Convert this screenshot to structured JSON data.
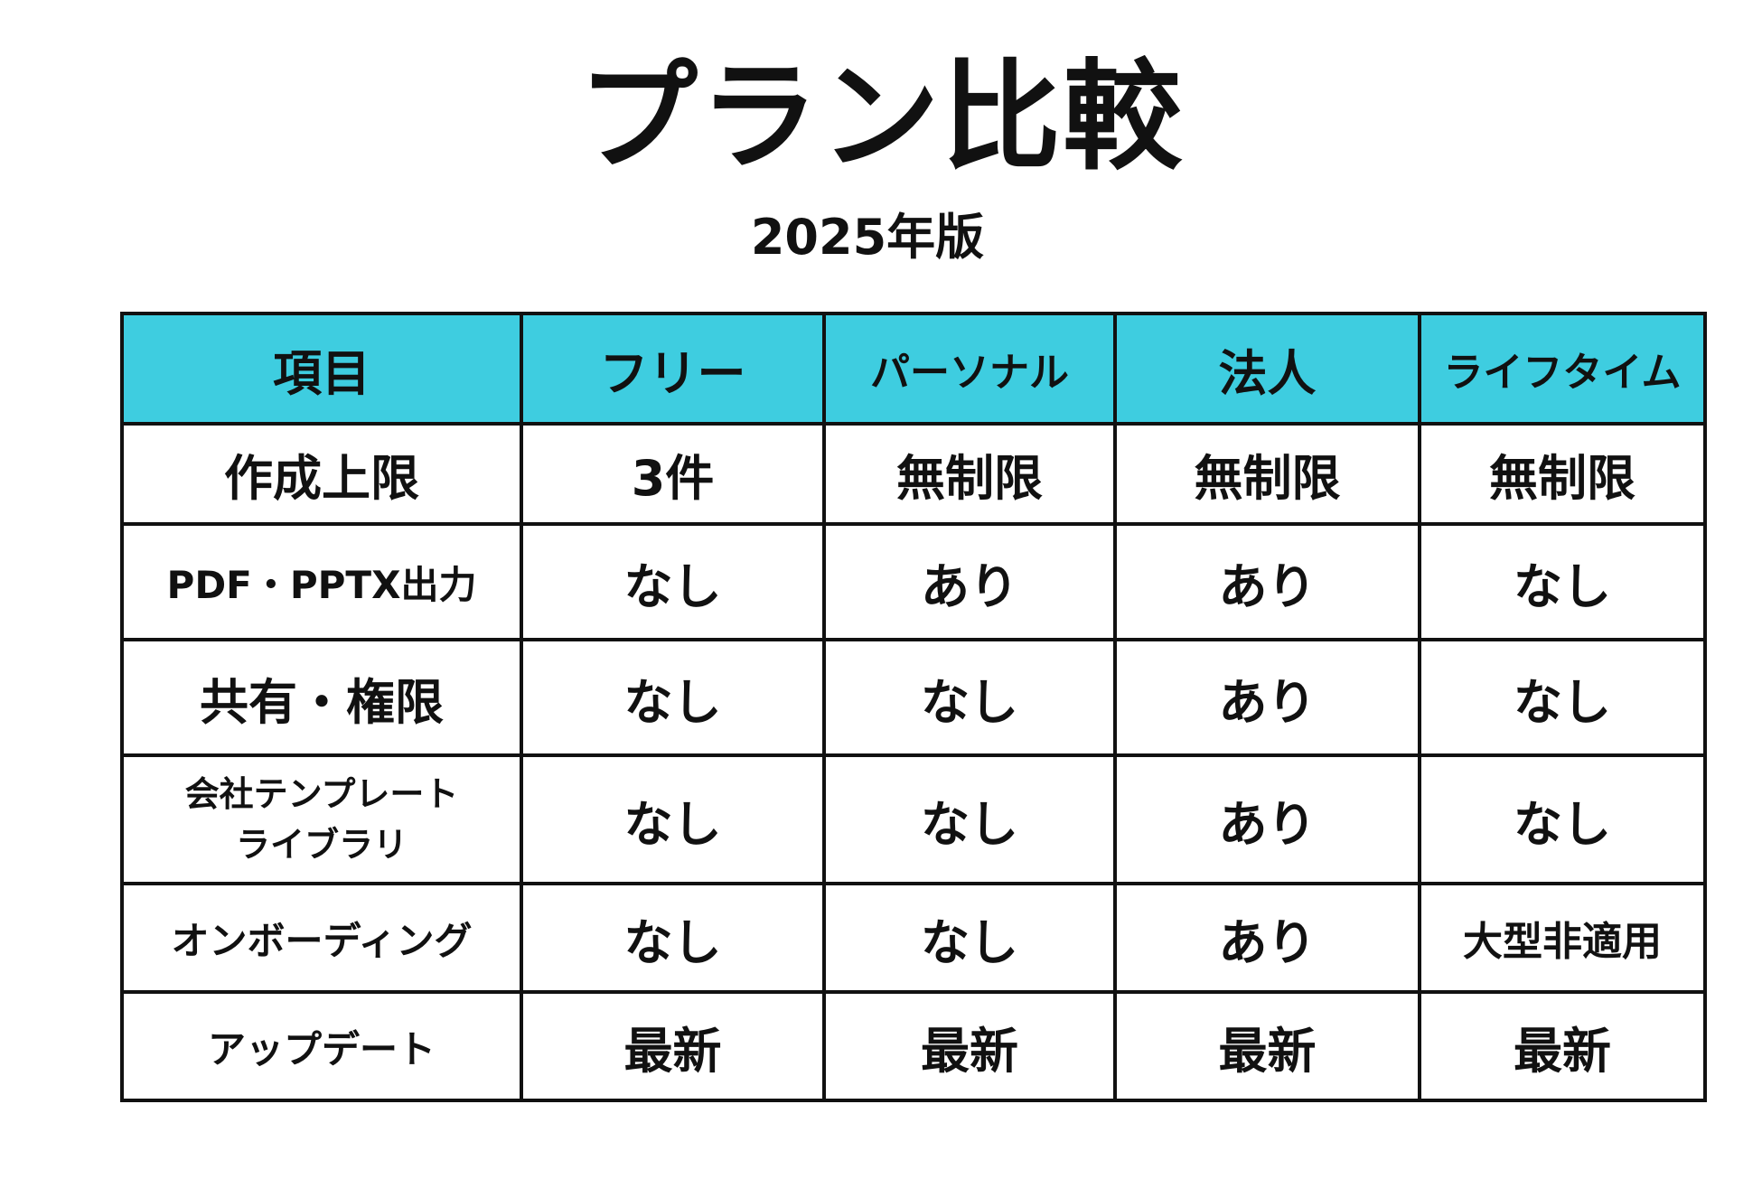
{
  "title": "プラン比較",
  "subtitle": "2025年版",
  "table": {
    "headers": [
      "項目",
      "フリー",
      "パーソナル",
      "法人",
      "ライフタイム"
    ],
    "rows": [
      {
        "label_lines": [
          "作成上限"
        ],
        "values": [
          "3件",
          "無制限",
          "無制限",
          "無制限"
        ]
      },
      {
        "label_lines": [
          "PDF・PPTX出力"
        ],
        "values": [
          "なし",
          "あり",
          "あり",
          "なし"
        ]
      },
      {
        "label_lines": [
          "共有・権限"
        ],
        "values": [
          "なし",
          "なし",
          "あり",
          "なし"
        ]
      },
      {
        "label_lines": [
          "会社テンプレート",
          "ライブラリ"
        ],
        "values": [
          "なし",
          "なし",
          "あり",
          "なし"
        ]
      },
      {
        "label_lines": [
          "オンボーディング"
        ],
        "values": [
          "なし",
          "なし",
          "あり",
          "大型非適用"
        ]
      },
      {
        "label_lines": [
          "アップデート"
        ],
        "values": [
          "最新",
          "最新",
          "最新",
          "最新"
        ]
      }
    ]
  },
  "colors": {
    "header_background": "#3ecde0",
    "border": "#111111",
    "text": "#111111",
    "background": "#ffffff"
  }
}
